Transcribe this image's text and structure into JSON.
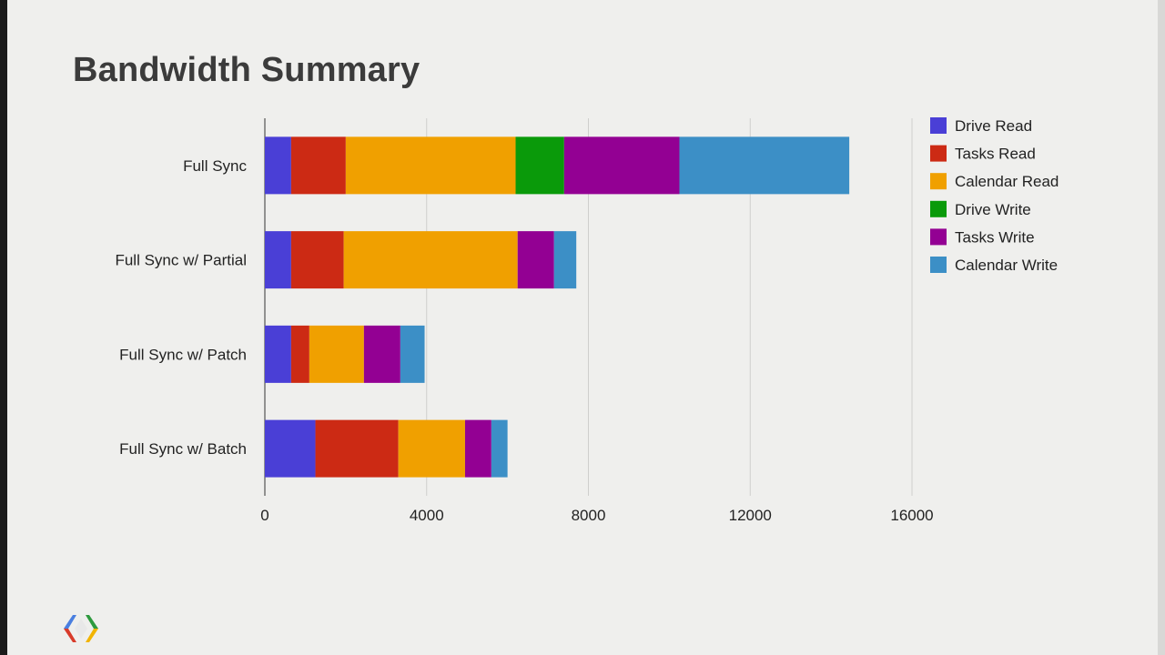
{
  "slide": {
    "title": "Bandwidth Summary"
  },
  "chart_data": {
    "type": "bar",
    "orientation": "horizontal",
    "stacked": true,
    "title": "Bandwidth Summary",
    "xlabel": "",
    "ylabel": "",
    "xlim": [
      0,
      16000
    ],
    "xticks": [
      0,
      4000,
      8000,
      12000,
      16000
    ],
    "xtick_labels": [
      "0",
      "4000",
      "8000",
      "12000",
      "16000"
    ],
    "grid": true,
    "legend_position": "right",
    "categories": [
      "Full Sync",
      "Full Sync w/ Partial",
      "Full Sync w/ Patch",
      "Full Sync w/ Batch"
    ],
    "series": [
      {
        "name": "Drive Read",
        "color": "#4a3fd6",
        "values": [
          650,
          650,
          650,
          1250
        ]
      },
      {
        "name": "Tasks Read",
        "color": "#cc2a14",
        "values": [
          1350,
          1300,
          450,
          2050
        ]
      },
      {
        "name": "Calendar Read",
        "color": "#f0a000",
        "values": [
          4200,
          4300,
          1350,
          1650
        ]
      },
      {
        "name": "Drive Write",
        "color": "#0a9a0a",
        "values": [
          1200,
          0,
          0,
          0
        ]
      },
      {
        "name": "Tasks Write",
        "color": "#930093",
        "values": [
          2850,
          900,
          900,
          650
        ]
      },
      {
        "name": "Calendar Write",
        "color": "#3c8fc6",
        "values": [
          4200,
          550,
          600,
          400
        ]
      }
    ]
  }
}
